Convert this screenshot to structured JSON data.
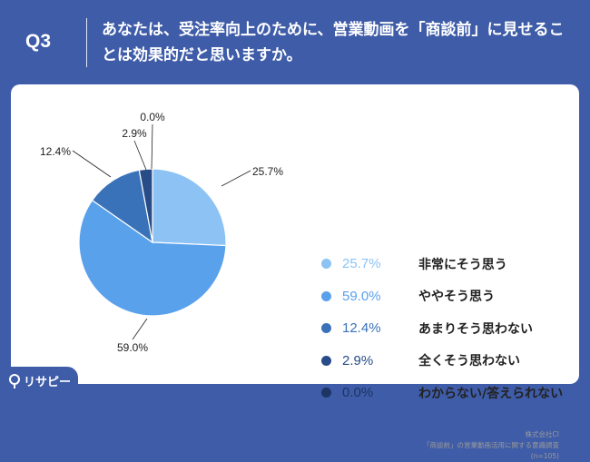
{
  "header": {
    "question_label": "Q3",
    "question_text": "あなたは、受注率向上のために、営業動画を「商談前」に見せることは効果的だと思いますか。"
  },
  "chart_data": {
    "type": "pie",
    "categories": [
      "非常にそう思う",
      "ややそう思う",
      "あまりそう思わない",
      "全くそう思わない",
      "わからない/答えられない"
    ],
    "values": [
      25.7,
      59.0,
      12.4,
      2.9,
      0.0
    ],
    "value_labels": [
      "25.7%",
      "59.0%",
      "12.4%",
      "2.9%",
      "0.0%"
    ],
    "colors": [
      "#8cc3f4",
      "#5aa1ec",
      "#3a72b9",
      "#274c88",
      "#1c3563"
    ],
    "start_angle": "12 o'clock",
    "direction": "clockwise",
    "legend_placement": "right"
  },
  "source": {
    "line1": "株式会社CI",
    "line2": "「商談前」の営業動画活用に関する意識調査",
    "line3": "(n=105)"
  },
  "logo": {
    "text": "リサピー",
    "icon": "risapi-logo-icon"
  }
}
